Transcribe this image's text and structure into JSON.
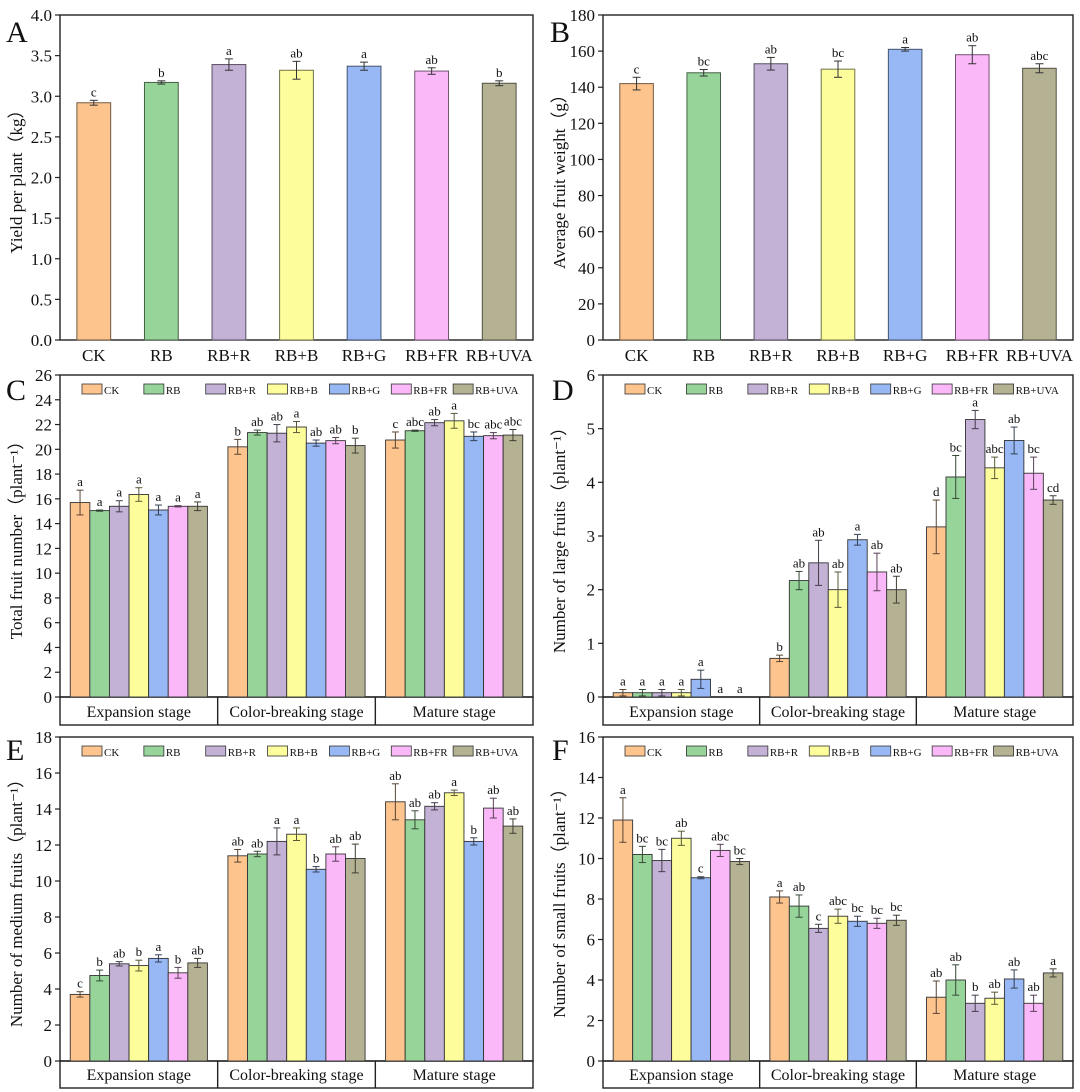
{
  "treatments": [
    "CK",
    "RB",
    "RB+R",
    "RB+B",
    "RB+G",
    "RB+FR",
    "RB+UVA"
  ],
  "colors": [
    "#FDC48E",
    "#96D49A",
    "#C3B1D6",
    "#FDFD9C",
    "#97B8F4",
    "#FBB8F8",
    "#B4B292"
  ],
  "stages": [
    "Expansion stage",
    "Color-breaking stage",
    "Mature stage"
  ],
  "chart_data": [
    {
      "panel": "A",
      "type": "bar",
      "ylabel": "Yield per plant（kg）",
      "ylim": [
        0,
        4.0
      ],
      "yticks": [
        "0.0",
        "0.5",
        "1.0",
        "1.5",
        "2.0",
        "2.5",
        "3.0",
        "3.5",
        "4.0"
      ],
      "categories": [
        "CK",
        "RB",
        "RB+R",
        "RB+B",
        "RB+G",
        "RB+FR",
        "RB+UVA"
      ],
      "values": [
        2.92,
        3.17,
        3.39,
        3.32,
        3.37,
        3.31,
        3.16
      ],
      "errors": [
        0.03,
        0.02,
        0.07,
        0.11,
        0.05,
        0.04,
        0.03
      ],
      "letters": [
        "c",
        "b",
        "a",
        "ab",
        "a",
        "ab",
        "b"
      ]
    },
    {
      "panel": "B",
      "type": "bar",
      "ylabel": "Average fruit weight（g）",
      "ylim": [
        0,
        180
      ],
      "yticks": [
        "0",
        "20",
        "40",
        "60",
        "80",
        "100",
        "120",
        "140",
        "160",
        "180"
      ],
      "categories": [
        "CK",
        "RB",
        "RB+R",
        "RB+B",
        "RB+G",
        "RB+FR",
        "RB+UVA"
      ],
      "values": [
        142,
        148,
        153,
        150,
        161,
        158,
        150.5
      ],
      "errors": [
        3.5,
        1.8,
        3.5,
        4.5,
        1.0,
        5.0,
        2.5
      ],
      "letters": [
        "c",
        "bc",
        "ab",
        "bc",
        "a",
        "ab",
        "abc"
      ]
    },
    {
      "panel": "C",
      "type": "bar",
      "ylabel": "Total fruit number（plant⁻¹）",
      "ylim": [
        0,
        26
      ],
      "yticks": [
        "0",
        "2",
        "4",
        "6",
        "8",
        "10",
        "12",
        "14",
        "16",
        "18",
        "20",
        "22",
        "24",
        "26"
      ],
      "legend": [
        "CK",
        "RB",
        "RB+R",
        "RB+B",
        "RB+G",
        "RB+FR",
        "RB+UVA"
      ],
      "legend_position": "top",
      "categories": [
        "Expansion stage",
        "Color-breaking stage",
        "Mature stage"
      ],
      "series": [
        {
          "name": "CK",
          "values": [
            15.7,
            20.2,
            20.75
          ],
          "errors": [
            1.0,
            0.6,
            0.65
          ],
          "letters": [
            "a",
            "b",
            "c"
          ]
        },
        {
          "name": "RB",
          "values": [
            15.05,
            21.35,
            21.5
          ],
          "errors": [
            0.05,
            0.2,
            0.05
          ],
          "letters": [
            "a",
            "ab",
            "abc"
          ]
        },
        {
          "name": "RB+R",
          "values": [
            15.4,
            21.3,
            22.15
          ],
          "errors": [
            0.45,
            0.7,
            0.25
          ],
          "letters": [
            "a",
            "ab",
            "ab"
          ]
        },
        {
          "name": "RB+B",
          "values": [
            16.35,
            21.8,
            22.3
          ],
          "errors": [
            0.55,
            0.45,
            0.6
          ],
          "letters": [
            "a",
            "a",
            "a"
          ]
        },
        {
          "name": "RB+G",
          "values": [
            15.1,
            20.5,
            21.05
          ],
          "errors": [
            0.4,
            0.25,
            0.35
          ],
          "letters": [
            "a",
            "ab",
            "bc"
          ]
        },
        {
          "name": "RB+FR",
          "values": [
            15.4,
            20.7,
            21.1
          ],
          "errors": [
            0.05,
            0.25,
            0.25
          ],
          "letters": [
            "a",
            "ab",
            "abc"
          ]
        },
        {
          "name": "RB+UVA",
          "values": [
            15.4,
            20.3,
            21.15
          ],
          "errors": [
            0.35,
            0.6,
            0.45
          ],
          "letters": [
            "a",
            "b",
            "abc"
          ]
        }
      ]
    },
    {
      "panel": "D",
      "type": "bar",
      "ylabel": "Number of large fruits（plant⁻¹）",
      "ylim": [
        0,
        6
      ],
      "yticks": [
        "0",
        "1",
        "2",
        "3",
        "4",
        "5",
        "6"
      ],
      "legend": [
        "CK",
        "RB",
        "RB+R",
        "RB+B",
        "RB+G",
        "RB+FR",
        "RB+UVA"
      ],
      "legend_position": "top",
      "categories": [
        "Expansion stage",
        "Color-breaking stage",
        "Mature stage"
      ],
      "series": [
        {
          "name": "CK",
          "values": [
            0.08,
            0.72,
            3.17
          ],
          "errors": [
            0.06,
            0.06,
            0.5
          ],
          "letters": [
            "a",
            "b",
            "d"
          ]
        },
        {
          "name": "RB",
          "values": [
            0.08,
            2.17,
            4.1
          ],
          "errors": [
            0.06,
            0.17,
            0.4
          ],
          "letters": [
            "a",
            "ab",
            "bc"
          ]
        },
        {
          "name": "RB+R",
          "values": [
            0.08,
            2.5,
            5.17
          ],
          "errors": [
            0.06,
            0.42,
            0.17
          ],
          "letters": [
            "a",
            "ab",
            "a"
          ]
        },
        {
          "name": "RB+B",
          "values": [
            0.08,
            2.0,
            4.27
          ],
          "errors": [
            0.06,
            0.33,
            0.2
          ],
          "letters": [
            "a",
            "ab",
            "abc"
          ]
        },
        {
          "name": "RB+G",
          "values": [
            0.33,
            2.93,
            4.78
          ],
          "errors": [
            0.17,
            0.1,
            0.25
          ],
          "letters": [
            "a",
            "a",
            "ab"
          ]
        },
        {
          "name": "RB+FR",
          "values": [
            0,
            2.33,
            4.17
          ],
          "errors": [
            0,
            0.35,
            0.3
          ],
          "letters": [
            "a",
            "ab",
            "bc"
          ]
        },
        {
          "name": "RB+UVA",
          "values": [
            0,
            2.0,
            3.67
          ],
          "errors": [
            0,
            0.25,
            0.08
          ],
          "letters": [
            "a",
            "ab",
            "cd"
          ]
        }
      ]
    },
    {
      "panel": "E",
      "type": "bar",
      "ylabel": "Number of medium fruits（plant⁻¹）",
      "ylim": [
        0,
        18
      ],
      "yticks": [
        "0",
        "2",
        "4",
        "6",
        "8",
        "10",
        "12",
        "14",
        "16",
        "18"
      ],
      "legend": [
        "CK",
        "RB",
        "RB+R",
        "RB+B",
        "RB+G",
        "RB+FR",
        "RB+UVA"
      ],
      "legend_position": "top",
      "categories": [
        "Expansion stage",
        "Color-breaking stage",
        "Mature stage"
      ],
      "series": [
        {
          "name": "CK",
          "values": [
            3.7,
            11.4,
            14.4
          ],
          "errors": [
            0.15,
            0.35,
            1.0
          ],
          "letters": [
            "c",
            "ab",
            "ab"
          ]
        },
        {
          "name": "RB",
          "values": [
            4.75,
            11.5,
            13.4
          ],
          "errors": [
            0.3,
            0.15,
            0.5
          ],
          "letters": [
            "b",
            "ab",
            "ab"
          ]
        },
        {
          "name": "RB+R",
          "values": [
            5.4,
            12.2,
            14.15
          ],
          "errors": [
            0.12,
            0.75,
            0.2
          ],
          "letters": [
            "ab",
            "a",
            "ab"
          ]
        },
        {
          "name": "RB+B",
          "values": [
            5.3,
            12.6,
            14.9
          ],
          "errors": [
            0.3,
            0.35,
            0.15
          ],
          "letters": [
            "b",
            "a",
            "a"
          ]
        },
        {
          "name": "RB+G",
          "values": [
            5.7,
            10.65,
            12.2
          ],
          "errors": [
            0.2,
            0.15,
            0.2
          ],
          "letters": [
            "a",
            "b",
            "b"
          ]
        },
        {
          "name": "RB+FR",
          "values": [
            4.9,
            11.5,
            14.05
          ],
          "errors": [
            0.3,
            0.4,
            0.55
          ],
          "letters": [
            "b",
            "ab",
            "ab"
          ]
        },
        {
          "name": "RB+UVA",
          "values": [
            5.45,
            11.25,
            13.05
          ],
          "errors": [
            0.25,
            0.8,
            0.4
          ],
          "letters": [
            "ab",
            "ab",
            "ab"
          ]
        }
      ]
    },
    {
      "panel": "F",
      "type": "bar",
      "ylabel": "Number of small fruits（plant⁻¹）",
      "ylim": [
        0,
        16
      ],
      "yticks": [
        "0",
        "2",
        "4",
        "6",
        "8",
        "10",
        "12",
        "14",
        "16"
      ],
      "legend": [
        "CK",
        "RB",
        "RB+R",
        "RB+B",
        "RB+G",
        "RB+FR",
        "RB+UVA"
      ],
      "legend_position": "top",
      "categories": [
        "Expansion stage",
        "Color-breaking stage",
        "Mature stage"
      ],
      "series": [
        {
          "name": "CK",
          "values": [
            11.9,
            8.1,
            3.15
          ],
          "errors": [
            1.1,
            0.3,
            0.8
          ],
          "letters": [
            "a",
            "a",
            "ab"
          ]
        },
        {
          "name": "RB",
          "values": [
            10.2,
            7.65,
            4.0
          ],
          "errors": [
            0.4,
            0.55,
            0.75
          ],
          "letters": [
            "bc",
            "ab",
            "ab"
          ]
        },
        {
          "name": "RB+R",
          "values": [
            9.9,
            6.55,
            2.85
          ],
          "errors": [
            0.55,
            0.2,
            0.4
          ],
          "letters": [
            "bc",
            "c",
            "b"
          ]
        },
        {
          "name": "RB+B",
          "values": [
            11.0,
            7.15,
            3.1
          ],
          "errors": [
            0.35,
            0.35,
            0.3
          ],
          "letters": [
            "ab",
            "abc",
            "ab"
          ]
        },
        {
          "name": "RB+G",
          "values": [
            9.05,
            6.9,
            4.05
          ],
          "errors": [
            0.05,
            0.25,
            0.45
          ],
          "letters": [
            "c",
            "bc",
            "ab"
          ]
        },
        {
          "name": "RB+FR",
          "values": [
            10.4,
            6.8,
            2.85
          ],
          "errors": [
            0.3,
            0.25,
            0.4
          ],
          "letters": [
            "abc",
            "bc",
            "ab"
          ]
        },
        {
          "name": "RB+UVA",
          "values": [
            9.85,
            6.95,
            4.35
          ],
          "errors": [
            0.15,
            0.25,
            0.2
          ],
          "letters": [
            "bc",
            "bc",
            "a"
          ]
        }
      ]
    }
  ]
}
